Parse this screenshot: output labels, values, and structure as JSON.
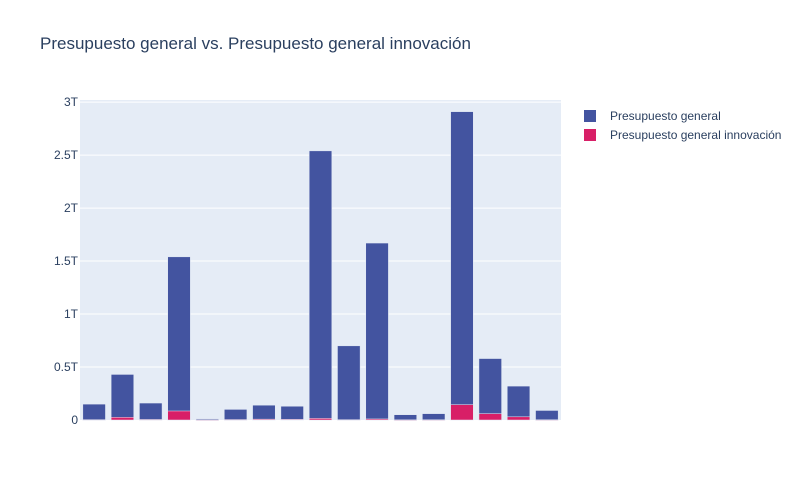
{
  "chart_data": {
    "type": "bar",
    "barmode": "overlay",
    "title": "Presupuesto general vs. Presupuesto general innovación",
    "xlabel": "",
    "ylabel": "",
    "ylim": [
      0,
      3.02
    ],
    "y_unit_scale": "T",
    "y_ticks": [
      {
        "value": 0,
        "label": "0"
      },
      {
        "value": 0.5,
        "label": "0.5T"
      },
      {
        "value": 1,
        "label": "1T"
      },
      {
        "value": 1.5,
        "label": "1.5T"
      },
      {
        "value": 2,
        "label": "2T"
      },
      {
        "value": 2.5,
        "label": "2.5T"
      },
      {
        "value": 3,
        "label": "3T"
      }
    ],
    "grid": true,
    "legend_position": "top-right",
    "categories": [
      "",
      "",
      "",
      "",
      "",
      "",
      "",
      "",
      "",
      "",
      "",
      "",
      "",
      "",
      "",
      "",
      ""
    ],
    "series": [
      {
        "name": "Presupuesto general",
        "color": "#4354a0",
        "values": [
          0.15,
          0.43,
          0.16,
          1.54,
          0.01,
          0.1,
          0.14,
          0.13,
          2.54,
          0.7,
          1.67,
          0.05,
          0.06,
          2.91,
          0.58,
          0.32,
          0.09
        ]
      },
      {
        "name": "Presupuesto general innovación",
        "color": "#d81f67",
        "values": [
          0.003,
          0.025,
          0.005,
          0.085,
          0.001,
          0.004,
          0.008,
          0.006,
          0.015,
          0.003,
          0.01,
          0.001,
          0.002,
          0.145,
          0.06,
          0.03,
          0.002
        ]
      }
    ]
  }
}
